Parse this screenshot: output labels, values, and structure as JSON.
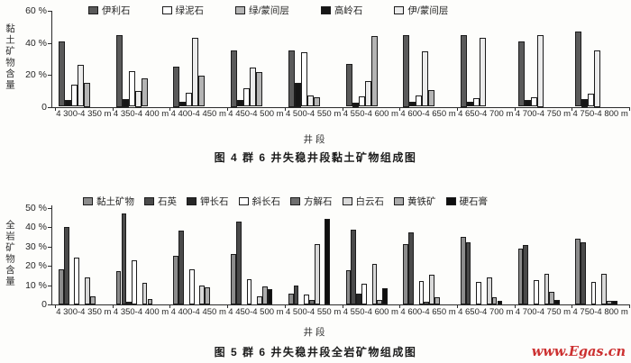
{
  "figure": {
    "description_top_caption": "图 4  群 6 井失稳井段黏土矿物组成图",
    "description_bottom_caption": "图 5  群 6 井失稳井段全岩矿物组成图"
  },
  "watermark": {
    "text": "www.Egas.cn",
    "color": "#cc3030"
  },
  "chart_data": [
    {
      "id": "fig4-clay-minerals",
      "type": "bar",
      "caption": "图 4  群 6 井失稳井段黏土矿物组成图",
      "xlabel": "井段",
      "ylabel": "黏土矿物含量",
      "ylim": [
        0,
        60
      ],
      "yticks": [
        "60 %",
        "40 %",
        "20 %",
        "0"
      ],
      "grid": false,
      "legend_position": "top-inside-row",
      "legend_order": [
        "伊利石",
        "绿泥石",
        "绿/蒙间层",
        "高岭石",
        "伊/蒙间层"
      ],
      "categories": [
        "4 300-4 350 m",
        "4 350-4 400 m",
        "4 400-4 450 m",
        "4 450-4 500 m",
        "4 500-4 550 m",
        "4 550-4 600 m",
        "4 600-4 650 m",
        "4 650-4 700 m",
        "4 700-4 750 m",
        "4 750-4 800 m"
      ],
      "series": [
        {
          "name": "伊利石",
          "color": "#5a5a5a",
          "pattern": "solid",
          "values": [
            41,
            45,
            25,
            35,
            35,
            27,
            45,
            45,
            41,
            47
          ]
        },
        {
          "name": "高岭石",
          "color": "#161616",
          "pattern": "solid",
          "values": [
            4,
            5,
            3,
            4.5,
            15,
            2.5,
            3,
            3,
            4,
            5
          ]
        },
        {
          "name": "绿泥石",
          "color": "#ffffff",
          "pattern": "solid",
          "values": [
            14,
            22,
            9,
            11.5,
            34,
            6.5,
            7,
            5.5,
            6,
            8
          ]
        },
        {
          "name": "伊/蒙间层",
          "color": "#ececec",
          "pattern": "solid",
          "values": [
            26,
            10,
            43,
            24.5,
            7,
            16,
            34.5,
            43,
            45,
            35
          ]
        },
        {
          "name": "绿/蒙间层",
          "color": "#b4b4b4",
          "pattern": "grid",
          "values": [
            15,
            18,
            19.5,
            21.5,
            6,
            44,
            10.5,
            0,
            0,
            0
          ]
        }
      ]
    },
    {
      "id": "fig5-whole-rock-minerals",
      "type": "bar",
      "caption": "图 5  群 6 井失稳井段全岩矿物组成图",
      "xlabel": "井段",
      "ylabel": "全岩矿物含量",
      "ylim": [
        0,
        50
      ],
      "yticks": [
        "50 %",
        "40 %",
        "30 %",
        "20 %",
        "10 %",
        "0"
      ],
      "grid": false,
      "legend_position": "top-inside-row",
      "legend_order": [
        "黏土矿物",
        "石英",
        "钾长石",
        "斜长石",
        "方解石",
        "白云石",
        "黄铁矿",
        "硬石膏"
      ],
      "categories": [
        "4 300-4 350 m",
        "4 350-4 400 m",
        "4 400-4 450 m",
        "4 450-4 500 m",
        "4 500-4 550 m",
        "4 550-4 600 m",
        "4 600-4 650 m",
        "4 650-4 700 m",
        "4 700-4 750 m",
        "4 750-4 800 m"
      ],
      "series": [
        {
          "name": "黏土矿物",
          "color": "#8c8c8c",
          "pattern": "hatch",
          "values": [
            18,
            17,
            25,
            26,
            5.5,
            17.5,
            31,
            35,
            29,
            34
          ]
        },
        {
          "name": "石英",
          "color": "#4a4a4a",
          "pattern": "solid",
          "values": [
            40,
            47,
            38,
            43,
            10,
            38.5,
            37,
            32,
            30.5,
            32
          ]
        },
        {
          "name": "钾长石",
          "color": "#262626",
          "pattern": "solid",
          "values": [
            0,
            1.5,
            0,
            0,
            0,
            5.5,
            0,
            0,
            0,
            0
          ]
        },
        {
          "name": "斜长石",
          "color": "#ffffff",
          "pattern": "solid",
          "values": [
            24,
            23,
            18,
            13,
            5,
            10.5,
            12,
            11.5,
            12.5,
            11.5
          ]
        },
        {
          "name": "方解石",
          "color": "#6e6e6e",
          "pattern": "hatch",
          "values": [
            0,
            0,
            0,
            0,
            2.5,
            0,
            1.5,
            0,
            0,
            0
          ]
        },
        {
          "name": "白云石",
          "color": "#d9d9d9",
          "pattern": "hatch",
          "values": [
            14,
            11,
            10,
            4,
            31,
            21,
            15.5,
            14,
            16,
            16
          ]
        },
        {
          "name": "黄铁矿",
          "color": "#ababab",
          "pattern": "grid",
          "values": [
            4,
            3,
            9,
            9.5,
            0,
            2.5,
            3.5,
            3.5,
            6.5,
            2
          ]
        },
        {
          "name": "硬石膏",
          "color": "#0f0f0f",
          "pattern": "solid",
          "values": [
            0,
            0,
            0,
            8,
            44,
            8.5,
            0,
            2,
            2.5,
            2
          ]
        }
      ]
    }
  ]
}
